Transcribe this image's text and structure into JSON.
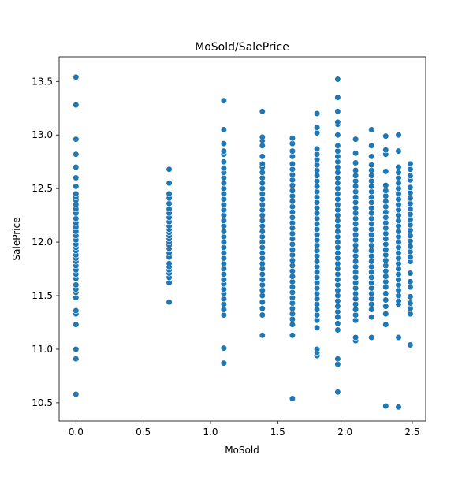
{
  "chart_data": {
    "type": "scatter",
    "title": "MoSold/SalePrice",
    "xlabel": "MoSold",
    "ylabel": "SalePrice",
    "xlim": [
      -0.125,
      2.6
    ],
    "ylim": [
      10.33,
      13.73
    ],
    "xticks": [
      0.0,
      0.5,
      1.0,
      1.5,
      2.0,
      2.5
    ],
    "xtick_labels": [
      "0.0",
      "0.5",
      "1.0",
      "1.5",
      "2.0",
      "2.5"
    ],
    "yticks": [
      10.5,
      11.0,
      11.5,
      12.0,
      12.5,
      13.0,
      13.5
    ],
    "ytick_labels": [
      "10.5",
      "11.0",
      "11.5",
      "12.0",
      "12.5",
      "13.0",
      "13.5"
    ],
    "grid": false,
    "legend": "none",
    "series": [
      {
        "color": "#1f77b4",
        "points": [
          {
            "x": 0.0,
            "y": [
              10.58,
              10.91,
              11.0,
              11.23,
              11.33,
              11.36,
              11.48,
              11.53,
              11.56,
              11.6,
              11.66,
              11.7,
              11.74,
              11.78,
              11.82,
              11.85,
              11.88,
              11.92,
              11.95,
              11.98,
              12.02,
              12.06,
              12.1,
              12.14,
              12.18,
              12.22,
              12.27,
              12.31,
              12.35,
              12.39,
              12.42,
              12.45,
              12.52,
              12.6,
              12.7,
              12.82,
              12.96,
              13.28,
              13.54
            ]
          },
          {
            "x": 0.693,
            "y": [
              11.44,
              11.62,
              11.67,
              11.71,
              11.74,
              11.77,
              11.8,
              11.86,
              11.9,
              11.94,
              11.97,
              12.0,
              12.03,
              12.06,
              12.09,
              12.12,
              12.15,
              12.19,
              12.23,
              12.27,
              12.31,
              12.36,
              12.41,
              12.45,
              12.55,
              12.68
            ]
          },
          {
            "x": 1.099,
            "y": [
              10.87,
              11.01,
              11.32,
              11.37,
              11.42,
              11.47,
              11.52,
              11.56,
              11.61,
              11.65,
              11.7,
              11.75,
              11.8,
              11.85,
              11.9,
              11.95,
              12.0,
              12.05,
              12.1,
              12.15,
              12.2,
              12.25,
              12.3,
              12.35,
              12.4,
              12.45,
              12.5,
              12.55,
              12.6,
              12.65,
              12.69,
              12.75,
              12.82,
              12.85,
              12.92,
              13.05,
              13.32
            ]
          },
          {
            "x": 1.386,
            "y": [
              11.13,
              11.32,
              11.38,
              11.44,
              11.5,
              11.55,
              11.6,
              11.65,
              11.7,
              11.75,
              11.8,
              11.85,
              11.9,
              11.95,
              12.0,
              12.05,
              12.1,
              12.15,
              12.2,
              12.25,
              12.3,
              12.35,
              12.4,
              12.45,
              12.5,
              12.55,
              12.6,
              12.65,
              12.7,
              12.73,
              12.8,
              12.9,
              12.95,
              12.98,
              13.22
            ]
          },
          {
            "x": 1.609,
            "y": [
              10.54,
              11.13,
              11.23,
              11.28,
              11.33,
              11.38,
              11.43,
              11.48,
              11.53,
              11.58,
              11.63,
              11.68,
              11.73,
              11.78,
              11.83,
              11.88,
              11.93,
              11.98,
              12.03,
              12.08,
              12.13,
              12.18,
              12.23,
              12.28,
              12.33,
              12.38,
              12.43,
              12.48,
              12.53,
              12.58,
              12.63,
              12.68,
              12.73,
              12.8,
              12.85,
              12.92,
              12.97
            ]
          },
          {
            "x": 1.792,
            "y": [
              10.94,
              10.97,
              11.0,
              11.2,
              11.27,
              11.32,
              11.37,
              11.42,
              11.47,
              11.52,
              11.57,
              11.62,
              11.67,
              11.72,
              11.77,
              11.82,
              11.87,
              11.92,
              11.97,
              12.02,
              12.07,
              12.12,
              12.17,
              12.22,
              12.27,
              12.32,
              12.37,
              12.42,
              12.47,
              12.52,
              12.57,
              12.62,
              12.67,
              12.72,
              12.77,
              12.82,
              12.87,
              13.02,
              13.07,
              13.2
            ]
          },
          {
            "x": 1.946,
            "y": [
              10.6,
              10.86,
              10.91,
              11.18,
              11.24,
              11.3,
              11.35,
              11.4,
              11.45,
              11.5,
              11.55,
              11.6,
              11.65,
              11.7,
              11.75,
              11.8,
              11.85,
              11.9,
              11.95,
              12.0,
              12.05,
              12.1,
              12.15,
              12.2,
              12.25,
              12.3,
              12.35,
              12.4,
              12.45,
              12.5,
              12.55,
              12.6,
              12.65,
              12.7,
              12.75,
              12.8,
              12.85,
              12.9,
              13.0,
              13.1,
              13.12,
              13.22,
              13.35,
              13.52
            ]
          },
          {
            "x": 2.079,
            "y": [
              11.08,
              11.11,
              11.27,
              11.32,
              11.37,
              11.42,
              11.47,
              11.52,
              11.57,
              11.62,
              11.67,
              11.72,
              11.77,
              11.82,
              11.87,
              11.92,
              11.97,
              12.02,
              12.07,
              12.12,
              12.17,
              12.22,
              12.27,
              12.32,
              12.37,
              12.42,
              12.47,
              12.52,
              12.57,
              12.62,
              12.67,
              12.74,
              12.83,
              12.96
            ]
          },
          {
            "x": 2.197,
            "y": [
              11.11,
              11.3,
              11.37,
              11.42,
              11.47,
              11.52,
              11.57,
              11.62,
              11.67,
              11.72,
              11.77,
              11.82,
              11.87,
              11.92,
              11.97,
              12.02,
              12.07,
              12.12,
              12.17,
              12.22,
              12.27,
              12.32,
              12.37,
              12.42,
              12.47,
              12.52,
              12.57,
              12.62,
              12.67,
              12.72,
              12.8,
              12.9,
              13.05
            ]
          },
          {
            "x": 2.303,
            "y": [
              10.47,
              11.23,
              11.33,
              11.4,
              11.46,
              11.52,
              11.58,
              11.63,
              11.68,
              11.73,
              11.78,
              11.83,
              11.88,
              11.93,
              11.98,
              12.03,
              12.08,
              12.13,
              12.18,
              12.23,
              12.28,
              12.33,
              12.38,
              12.43,
              12.48,
              12.53,
              12.66,
              12.82,
              12.86,
              12.99
            ]
          },
          {
            "x": 2.398,
            "y": [
              10.46,
              11.11,
              11.42,
              11.45,
              11.5,
              11.55,
              11.6,
              11.65,
              11.7,
              11.75,
              11.8,
              11.85,
              11.9,
              11.95,
              12.0,
              12.05,
              12.1,
              12.15,
              12.2,
              12.25,
              12.3,
              12.35,
              12.4,
              12.45,
              12.5,
              12.55,
              12.6,
              12.65,
              12.7,
              12.85,
              13.0
            ]
          },
          {
            "x": 2.485,
            "y": [
              11.04,
              11.33,
              11.38,
              11.43,
              11.49,
              11.58,
              11.63,
              11.71,
              11.82,
              11.86,
              11.91,
              11.96,
              12.01,
              12.06,
              12.11,
              12.16,
              12.21,
              12.26,
              12.31,
              12.36,
              12.41,
              12.46,
              12.51,
              12.58,
              12.62,
              12.68,
              12.73
            ]
          }
        ]
      }
    ]
  }
}
